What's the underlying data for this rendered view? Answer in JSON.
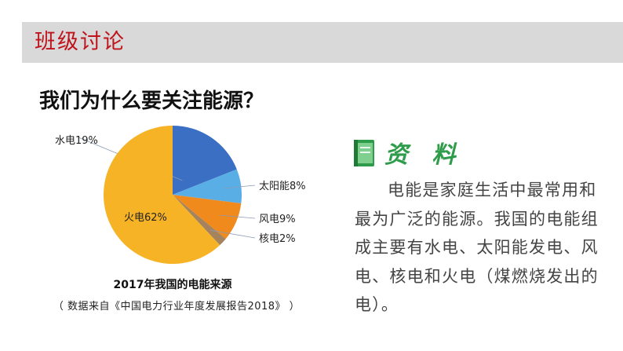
{
  "header": {
    "title": "班级讨论"
  },
  "question": "我们为什么要关注能源？",
  "chart_data": {
    "type": "pie",
    "title": "2017年我国的电能来源",
    "source": "（ 数据来自《中国电力行业年度发展报告2018》 ）",
    "slices": [
      {
        "label": "水电19%",
        "value": 19,
        "color": "#3a6fc4"
      },
      {
        "label": "太阳能8%",
        "value": 8,
        "color": "#5aaee6"
      },
      {
        "label": "风电9%",
        "value": 9,
        "color": "#f08a1c"
      },
      {
        "label": "核电2%",
        "value": 2,
        "color": "#a5835c"
      },
      {
        "label": "火电62%",
        "value": 62,
        "color": "#f6b325"
      }
    ]
  },
  "reference": {
    "title": "资 料",
    "body": "电能是家庭生活中最常用和最为广泛的能源。我国的电能组成主要有水电、太阳能发电、风电、核电和火电（煤燃烧发出的电）。"
  }
}
